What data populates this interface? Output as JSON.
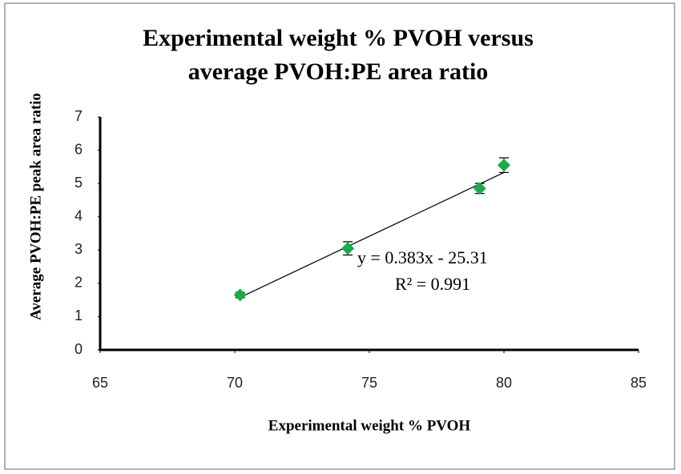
{
  "chart_data": {
    "type": "scatter",
    "title": [
      "Experimental weight % PVOH versus",
      "average PVOH:PE  area ratio"
    ],
    "x_label": "Experimental weight % PVOH",
    "y_label": "Average PVOH:PE peak area ratio",
    "x": [
      70.2,
      74.2,
      79.1,
      80.0
    ],
    "values": [
      1.65,
      3.05,
      4.85,
      5.55
    ],
    "errors": [
      0.08,
      0.2,
      0.15,
      0.22
    ],
    "color": "#1aab4b",
    "xlim": [
      65,
      85
    ],
    "xticks": [
      65,
      70,
      75,
      80,
      85
    ],
    "ylim": [
      0,
      7
    ],
    "yticks": [
      0,
      1,
      2,
      3,
      4,
      5,
      6,
      7
    ],
    "grid": false,
    "trendline": {
      "slope": 0.383,
      "intercept": -25.31,
      "label": "y = 0.383x - 25.31",
      "r2_label": "R² = 0.991"
    }
  }
}
